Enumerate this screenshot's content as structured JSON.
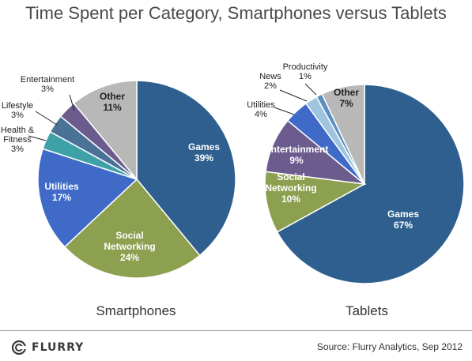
{
  "title": "Time Spent per Category, Smartphones versus Tablets",
  "source": "Source: Flurry Analytics, Sep 2012",
  "brand": {
    "name": "FLURRY",
    "logo_icon": "flurry-logo-icon"
  },
  "chart_data": [
    {
      "type": "pie",
      "caption": "Smartphones",
      "slices": [
        {
          "label": "Games",
          "value": 39,
          "value_label": "39%",
          "color": "#2e5f8e"
        },
        {
          "label": "Social Networking",
          "value": 24,
          "value_label": "24%",
          "color": "#8ca050"
        },
        {
          "label": "Utilities",
          "value": 17,
          "value_label": "17%",
          "color": "#3f6ac8"
        },
        {
          "label": "Health & Fitness",
          "value": 3,
          "value_label": "3%",
          "color": "#3ea1a8"
        },
        {
          "label": "Lifestyle",
          "value": 3,
          "value_label": "3%",
          "color": "#4a7196"
        },
        {
          "label": "Entertainment",
          "value": 3,
          "value_label": "3%",
          "color": "#6c5c8e"
        },
        {
          "label": "Other",
          "value": 11,
          "value_label": "11%",
          "color": "#b8b8b8"
        }
      ]
    },
    {
      "type": "pie",
      "caption": "Tablets",
      "slices": [
        {
          "label": "Games",
          "value": 67,
          "value_label": "67%",
          "color": "#2e5f8e"
        },
        {
          "label": "Social Networking",
          "value": 10,
          "value_label": "10%",
          "color": "#8ca050"
        },
        {
          "label": "Entertainment",
          "value": 9,
          "value_label": "9%",
          "color": "#6c5c8e"
        },
        {
          "label": "Utilities",
          "value": 4,
          "value_label": "4%",
          "color": "#3f6ac8"
        },
        {
          "label": "News",
          "value": 2,
          "value_label": "2%",
          "color": "#9ec4e0"
        },
        {
          "label": "Productivity",
          "value": 1,
          "value_label": "1%",
          "color": "#5a8fc0"
        },
        {
          "label": "Other",
          "value": 7,
          "value_label": "7%",
          "color": "#b8b8b8"
        }
      ]
    }
  ]
}
